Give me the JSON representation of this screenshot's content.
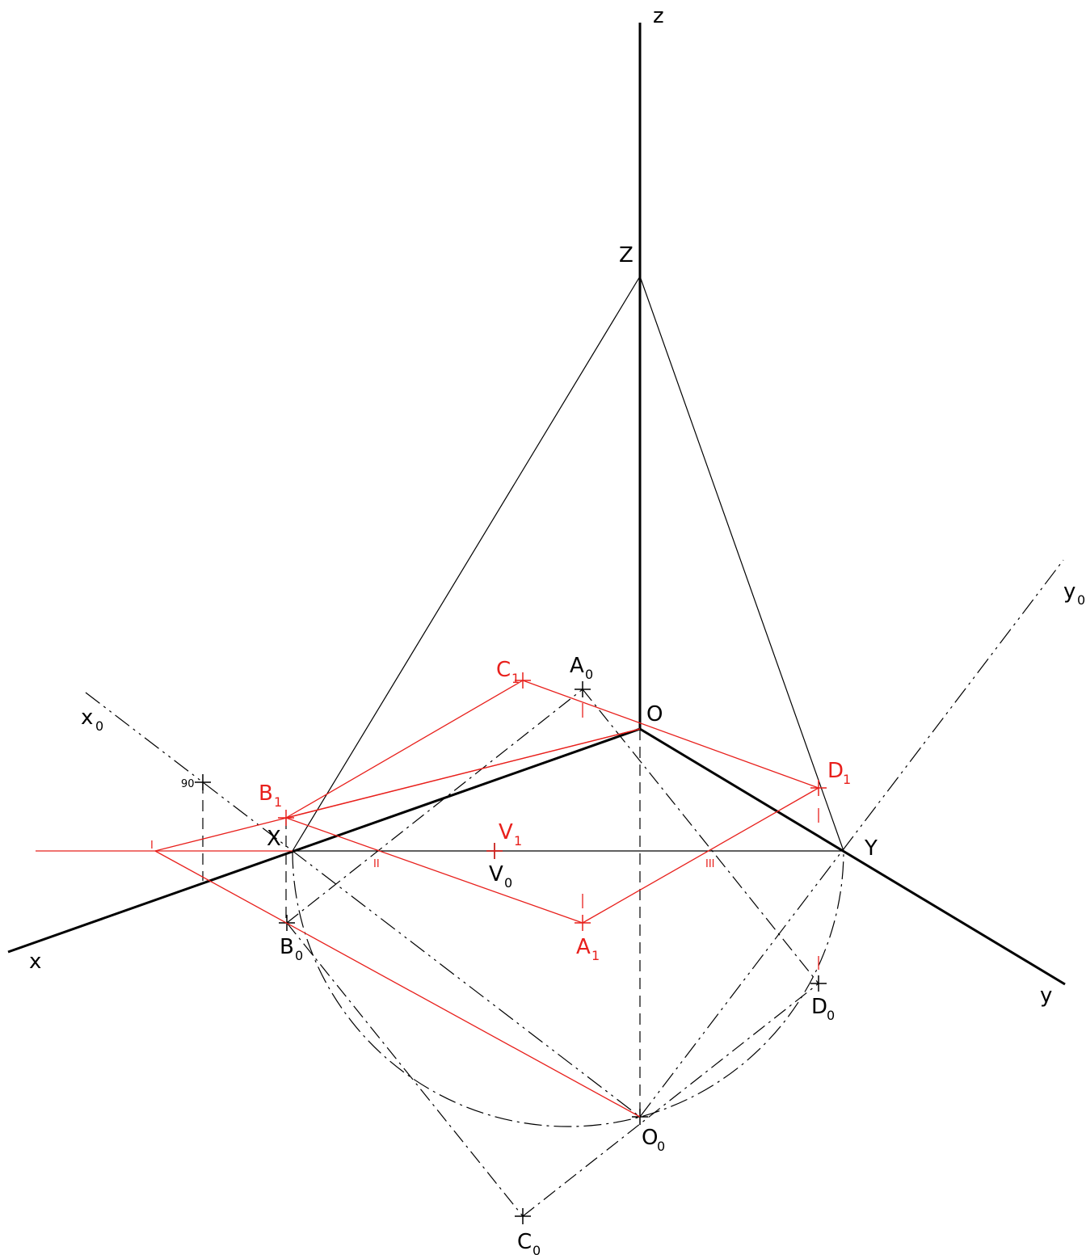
{
  "colors": {
    "construction": "#000000",
    "result": "#e8201c",
    "background": "#ffffff"
  },
  "labels": {
    "z_axis": {
      "main": "z",
      "sub": ""
    },
    "Z": {
      "main": "Z",
      "sub": ""
    },
    "O": {
      "main": "O",
      "sub": ""
    },
    "X": {
      "main": "X",
      "sub": ""
    },
    "Y": {
      "main": "Y",
      "sub": ""
    },
    "x_axis": {
      "main": "x",
      "sub": ""
    },
    "y_axis": {
      "main": "y",
      "sub": ""
    },
    "x0": {
      "main": "x",
      "sub": "0"
    },
    "y0": {
      "main": "y",
      "sub": "0"
    },
    "A0": {
      "main": "A",
      "sub": "0"
    },
    "B0": {
      "main": "B",
      "sub": "0"
    },
    "C0": {
      "main": "C",
      "sub": "0"
    },
    "D0": {
      "main": "D",
      "sub": "0"
    },
    "O0": {
      "main": "O",
      "sub": "0"
    },
    "V0": {
      "main": "V",
      "sub": "0"
    },
    "A1": {
      "main": "A",
      "sub": "1"
    },
    "B1": {
      "main": "B",
      "sub": "1"
    },
    "C1": {
      "main": "C",
      "sub": "1"
    },
    "D1": {
      "main": "D",
      "sub": "1"
    },
    "V1": {
      "main": "V",
      "sub": "1"
    },
    "angle_mark": "90",
    "roman_1": "I",
    "roman_2": "II",
    "roman_3": "III"
  }
}
